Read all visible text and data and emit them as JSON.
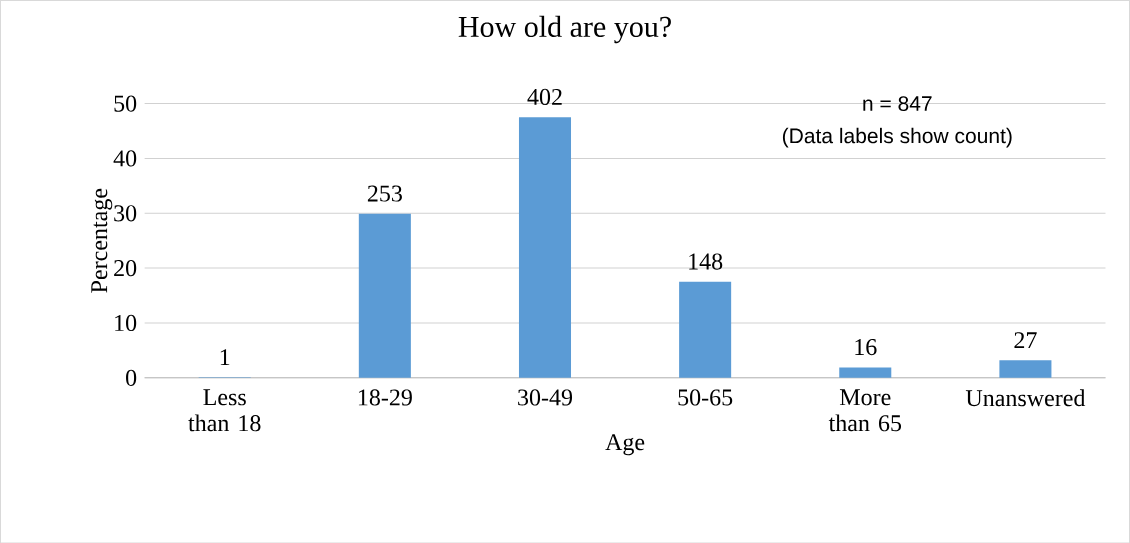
{
  "chart_data": {
    "type": "bar",
    "title": "How old are you?",
    "xlabel": "Age",
    "ylabel": "Percentage",
    "categories": [
      "Less than 18",
      "18-29",
      "30-49",
      "50-65",
      "More than 65",
      "Unanswered"
    ],
    "values": [
      0.1,
      29.9,
      47.5,
      17.5,
      1.9,
      3.2
    ],
    "color": "#5b9bd5",
    "ylim": [
      0,
      50
    ],
    "yticks": [
      0,
      10,
      20,
      30,
      40,
      50
    ],
    "grid": "y",
    "annotations": [
      "n = 847",
      "(Data labels show count)",
      {
        "text": "1",
        "x": "Less than 18",
        "y": 0.1
      },
      {
        "text": "253",
        "x": "18-29",
        "y": 29.9
      },
      {
        "text": "402",
        "x": "30-49",
        "y": 47.5
      },
      {
        "text": "148",
        "x": "50-65",
        "y": 17.5
      },
      {
        "text": "16",
        "x": "More than 65",
        "y": 1.9
      },
      {
        "text": "27",
        "x": "Unanswered",
        "y": 3.2
      }
    ]
  }
}
